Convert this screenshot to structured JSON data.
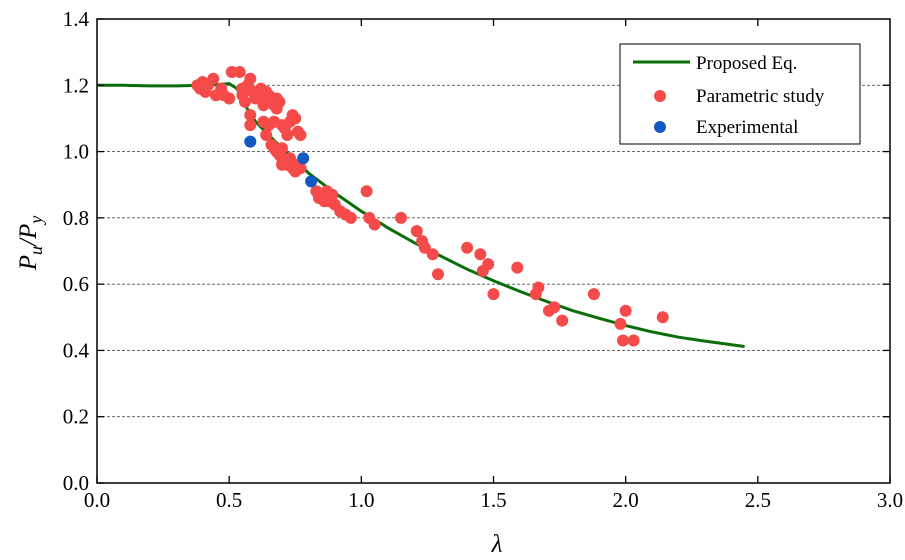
{
  "chart_data": {
    "type": "scatter",
    "xlabel": "λ",
    "ylabel": {
      "main": "P",
      "main_sub": "u",
      "sep": "/P",
      "sep_sub": "y"
    },
    "xlim": [
      0.0,
      3.0
    ],
    "ylim": [
      0.0,
      1.4
    ],
    "xticks": [
      "0.0",
      "0.5",
      "1.0",
      "1.5",
      "2.0",
      "2.5",
      "3.0"
    ],
    "yticks": [
      "0.0",
      "0.2",
      "0.4",
      "0.6",
      "0.8",
      "1.0",
      "1.2",
      "1.4"
    ],
    "grid": "horizontal dashed",
    "legend_position": "top-right",
    "series": [
      {
        "name": "Proposed Eq.",
        "kind": "line",
        "color": "#0b6e0b",
        "x": [
          0.0,
          0.1,
          0.2,
          0.3,
          0.4,
          0.45,
          0.5,
          0.53,
          0.56,
          0.6,
          0.65,
          0.7,
          0.75,
          0.8,
          0.85,
          0.9,
          1.0,
          1.1,
          1.2,
          1.3,
          1.4,
          1.5,
          1.6,
          1.7,
          1.8,
          1.9,
          2.0,
          2.1,
          2.2,
          2.3,
          2.45
        ],
        "y": [
          1.2,
          1.2,
          1.198,
          1.198,
          1.2,
          1.202,
          1.205,
          1.19,
          1.14,
          1.09,
          1.05,
          1.01,
          0.975,
          0.935,
          0.905,
          0.875,
          0.82,
          0.77,
          0.725,
          0.685,
          0.645,
          0.61,
          0.578,
          0.548,
          0.52,
          0.497,
          0.475,
          0.456,
          0.44,
          0.428,
          0.412
        ]
      },
      {
        "name": "Parametric study",
        "kind": "scatter",
        "color": "#f54a4a",
        "points": [
          [
            0.38,
            1.2
          ],
          [
            0.39,
            1.19
          ],
          [
            0.4,
            1.21
          ],
          [
            0.41,
            1.18
          ],
          [
            0.42,
            1.2
          ],
          [
            0.44,
            1.22
          ],
          [
            0.45,
            1.17
          ],
          [
            0.47,
            1.19
          ],
          [
            0.48,
            1.17
          ],
          [
            0.5,
            1.16
          ],
          [
            0.51,
            1.24
          ],
          [
            0.54,
            1.24
          ],
          [
            0.55,
            1.19
          ],
          [
            0.55,
            1.17
          ],
          [
            0.56,
            1.15
          ],
          [
            0.57,
            1.2
          ],
          [
            0.58,
            1.22
          ],
          [
            0.58,
            1.11
          ],
          [
            0.58,
            1.08
          ],
          [
            0.59,
            1.18
          ],
          [
            0.6,
            1.16
          ],
          [
            0.61,
            1.17
          ],
          [
            0.62,
            1.19
          ],
          [
            0.63,
            1.16
          ],
          [
            0.63,
            1.14
          ],
          [
            0.64,
            1.18
          ],
          [
            0.65,
            1.17
          ],
          [
            0.66,
            1.15
          ],
          [
            0.67,
            1.14
          ],
          [
            0.68,
            1.16
          ],
          [
            0.68,
            1.13
          ],
          [
            0.69,
            1.15
          ],
          [
            0.63,
            1.09
          ],
          [
            0.65,
            1.08
          ],
          [
            0.67,
            1.09
          ],
          [
            0.7,
            1.08
          ],
          [
            0.71,
            1.07
          ],
          [
            0.72,
            1.05
          ],
          [
            0.73,
            1.09
          ],
          [
            0.74,
            1.11
          ],
          [
            0.75,
            1.1
          ],
          [
            0.76,
            1.06
          ],
          [
            0.77,
            1.05
          ],
          [
            0.64,
            1.05
          ],
          [
            0.66,
            1.02
          ],
          [
            0.67,
            1.01
          ],
          [
            0.68,
            1.0
          ],
          [
            0.69,
            0.99
          ],
          [
            0.7,
            0.98
          ],
          [
            0.7,
            1.01
          ],
          [
            0.71,
            0.97
          ],
          [
            0.72,
            0.96
          ],
          [
            0.73,
            0.98
          ],
          [
            0.74,
            0.95
          ],
          [
            0.75,
            0.94
          ],
          [
            0.76,
            0.96
          ],
          [
            0.77,
            0.95
          ],
          [
            0.7,
            0.96
          ],
          [
            0.83,
            0.88
          ],
          [
            0.84,
            0.86
          ],
          [
            0.85,
            0.87
          ],
          [
            0.86,
            0.85
          ],
          [
            0.87,
            0.88
          ],
          [
            0.88,
            0.85
          ],
          [
            0.89,
            0.87
          ],
          [
            0.9,
            0.84
          ],
          [
            0.92,
            0.82
          ],
          [
            0.94,
            0.81
          ],
          [
            0.96,
            0.8
          ],
          [
            1.02,
            0.88
          ],
          [
            1.03,
            0.8
          ],
          [
            1.05,
            0.78
          ],
          [
            1.15,
            0.8
          ],
          [
            1.21,
            0.76
          ],
          [
            1.23,
            0.73
          ],
          [
            1.24,
            0.71
          ],
          [
            1.27,
            0.69
          ],
          [
            1.29,
            0.63
          ],
          [
            1.4,
            0.71
          ],
          [
            1.45,
            0.69
          ],
          [
            1.46,
            0.64
          ],
          [
            1.48,
            0.66
          ],
          [
            1.5,
            0.57
          ],
          [
            1.59,
            0.65
          ],
          [
            1.66,
            0.57
          ],
          [
            1.67,
            0.59
          ],
          [
            1.71,
            0.52
          ],
          [
            1.73,
            0.53
          ],
          [
            1.76,
            0.49
          ],
          [
            1.88,
            0.57
          ],
          [
            1.98,
            0.48
          ],
          [
            1.99,
            0.43
          ],
          [
            2.0,
            0.52
          ],
          [
            2.03,
            0.43
          ],
          [
            2.14,
            0.5
          ]
        ]
      },
      {
        "name": "Experimental",
        "kind": "scatter",
        "color": "#1259c3",
        "points": [
          [
            0.58,
            1.03
          ],
          [
            0.78,
            0.98
          ],
          [
            0.81,
            0.91
          ]
        ]
      }
    ]
  }
}
